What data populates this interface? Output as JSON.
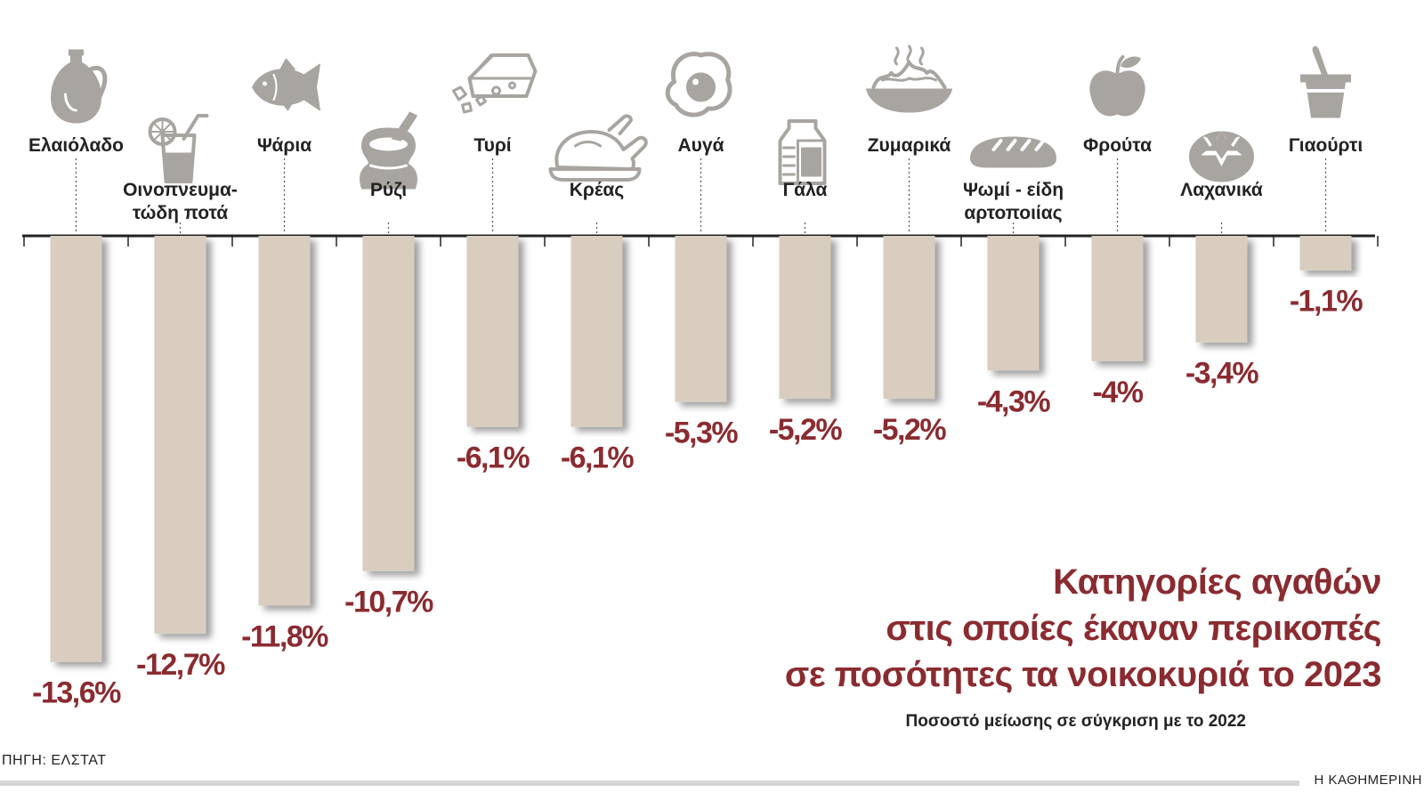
{
  "title": {
    "line1": "Κατηγορίες αγαθών",
    "line2": "στις οποίες έκαναν περικοπές",
    "line3": "σε ποσότητες τα νοικοκυριά το 2023"
  },
  "subtitle": "Ποσοστό μείωσης σε σύγκριση με το 2022",
  "source": "ΠΗΓΗ: ΕΛΣΤΑΤ",
  "brand": "Η ΚΑΘΗΜΕΡΙΝΗ",
  "colors": {
    "bar": "#d9cdc0",
    "value": "#8a2b30",
    "icon": "#a8a4a0"
  },
  "chart_data": {
    "type": "bar",
    "orientation": "vertical-downward",
    "categories": [
      "Ελαιόλαδο",
      "Οινοπνευματώδη ποτά",
      "Ψάρια",
      "Ρύζι",
      "Τυρί",
      "Κρέας",
      "Αυγά",
      "Γάλα",
      "Ζυμαρικά",
      "Ψωμί - είδη αρτοποιίας",
      "Φρούτα",
      "Λαχανικά",
      "Γιαούρτι"
    ],
    "category_label_lines": [
      [
        "Ελαιόλαδο"
      ],
      [
        "Οινοπνευμα-",
        "τώδη ποτά"
      ],
      [
        "Ψάρια"
      ],
      [
        "Ρύζι"
      ],
      [
        "Τυρί"
      ],
      [
        "Κρέας"
      ],
      [
        "Αυγά"
      ],
      [
        "Γάλα"
      ],
      [
        "Ζυμαρικά"
      ],
      [
        "Ψωμί - είδη",
        "αρτοποιίας"
      ],
      [
        "Φρούτα"
      ],
      [
        "Λαχανικά"
      ],
      [
        "Γιαούρτι"
      ]
    ],
    "icons": [
      "olive-oil-icon",
      "cocktail-icon",
      "fish-icon",
      "rice-sack-icon",
      "cheese-icon",
      "roast-chicken-icon",
      "egg-icon",
      "milk-carton-icon",
      "pasta-bowl-icon",
      "bread-icon",
      "apple-icon",
      "tomato-icon",
      "yogurt-icon"
    ],
    "values": [
      -13.6,
      -12.7,
      -11.8,
      -10.7,
      -6.1,
      -6.1,
      -5.3,
      -5.2,
      -5.2,
      -4.3,
      -4.0,
      -3.4,
      -1.1
    ],
    "value_labels": [
      "-13,6%",
      "-12,7%",
      "-11,8%",
      "-10,7%",
      "-6,1%",
      "-6,1%",
      "-5,3%",
      "-5,2%",
      "-5,2%",
      "-4,3%",
      "-4%",
      "-3,4%",
      "-1,1%"
    ],
    "unit": "%",
    "ylim": [
      -14,
      0
    ],
    "grid": false,
    "legend": "none"
  }
}
